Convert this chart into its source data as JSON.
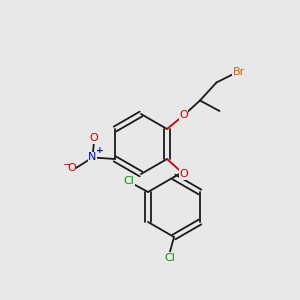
{
  "bg_color": "#e8e8e8",
  "bond_color": "#1a1a1a",
  "colors": {
    "Br": "#cc6600",
    "O": "#cc0000",
    "N": "#0000cc",
    "Cl": "#009900",
    "C": "#1a1a1a",
    "minus": "#cc0000",
    "plus": "#0000cc"
  },
  "lw": 1.3,
  "font_size": 7.5
}
